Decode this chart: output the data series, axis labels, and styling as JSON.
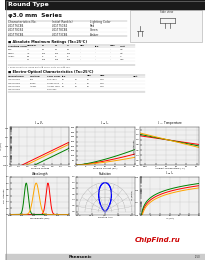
{
  "title_bar": "Round Type",
  "title_bar_bg": "#1a1a1a",
  "title_bar_fg": "#ffffff",
  "series_title": "φ3.0 mm  Series",
  "page_bg": "#ffffff",
  "part_header": [
    "Characteristics No.",
    "Initial Rank(s)",
    "Lighting Color"
  ],
  "part_rows": [
    [
      "LNG776CB4",
      "LNG775CB4",
      "Red"
    ],
    [
      "LNG770CB4",
      "LNG778CB4",
      "Green"
    ],
    [
      "LNG779CB4",
      "LNG773CB4",
      "Amber"
    ]
  ],
  "abs_max_title": "■ Absolute Maximum Ratings (Ta=25°C)",
  "abs_cols": [
    "Lighting Color",
    "Symbol",
    "R",
    "G",
    "A",
    "min",
    "typ",
    "max",
    "Unit"
  ],
  "abs_rows": [
    [
      "Red",
      "IF",
      "30",
      "30",
      "30",
      "",
      "",
      "",
      "mA"
    ],
    [
      "Green",
      "IFP",
      "100",
      "100",
      "100",
      "",
      "",
      "",
      "mA"
    ],
    [
      "Amber",
      "VR",
      "5",
      "5",
      "5",
      "",
      "",
      "",
      "V"
    ],
    [
      "",
      "PD",
      "105",
      "105",
      "105",
      "",
      "",
      "",
      "mW"
    ]
  ],
  "elec_title": "■ Electro-Optical Characteristics (Ta=25°C)",
  "elec_cols": [
    "Conventional Part No.",
    "Lighting Color",
    "Lens Color",
    "typ",
    "min",
    "max",
    "Unit"
  ],
  "elec_rows": [
    [
      "LNG776CB4",
      "Red",
      "Red Lens",
      "",
      "",
      "",
      ""
    ],
    [
      "LNG770CB4",
      "Green",
      "Green Lens",
      "",
      "",
      "",
      ""
    ],
    [
      "LNG779CB4",
      "Amber",
      "Amber Lens",
      "",
      "",
      "",
      ""
    ],
    [
      "LNG779CB4",
      "Amber",
      "Amber Lens",
      "",
      "",
      "",
      ""
    ]
  ],
  "chipfind_text": "ChipFind.ru",
  "chipfind_color": "#cc0000",
  "panasonic_text": "Panasonic",
  "footer_bg": "#cccccc",
  "graph_bg": "#e8e8e8",
  "grid_color": "#bbbbbb"
}
